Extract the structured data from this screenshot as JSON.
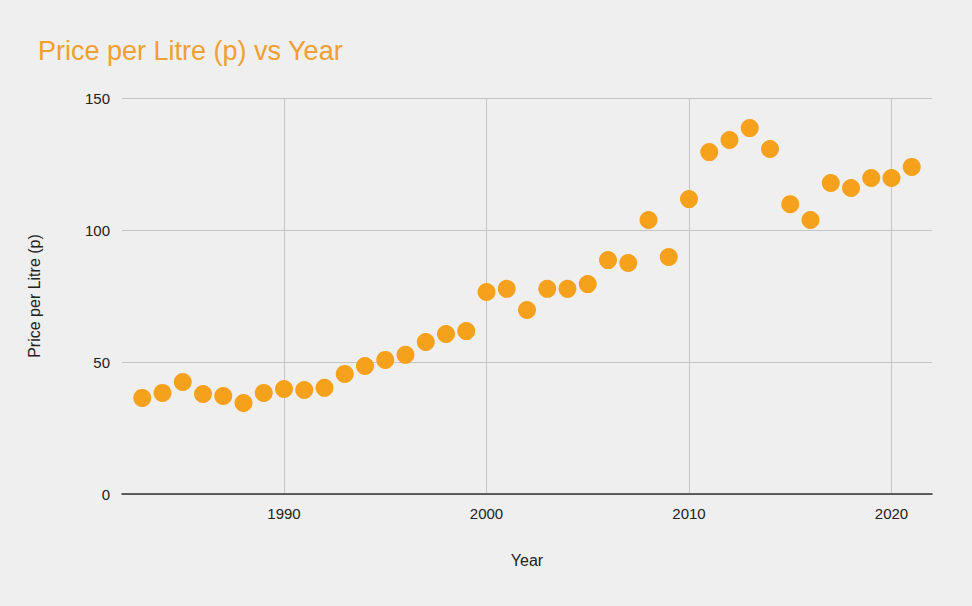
{
  "chart_data": {
    "type": "scatter",
    "title": "Price per Litre (p) vs Year",
    "x_label": "Year",
    "y_label": "Price per Litre (p)",
    "x": [
      1983,
      1984,
      1985,
      1986,
      1987,
      1988,
      1989,
      1990,
      1991,
      1992,
      1993,
      1994,
      1995,
      1996,
      1997,
      1998,
      1999,
      2000,
      2001,
      2002,
      2003,
      2004,
      2005,
      2006,
      2007,
      2008,
      2009,
      2010,
      2011,
      2012,
      2013,
      2014,
      2015,
      2016,
      2017,
      2018,
      2019,
      2020,
      2021
    ],
    "values": [
      36.4,
      38.3,
      42.4,
      37.9,
      37.1,
      34.5,
      38.3,
      39.8,
      39.4,
      40.2,
      45.5,
      48.5,
      50.8,
      52.7,
      57.6,
      60.6,
      61.7,
      76.5,
      77.7,
      69.7,
      77.7,
      77.7,
      79.5,
      88.6,
      87.5,
      103.8,
      89.8,
      111.7,
      129.5,
      134.1,
      138.6,
      130.7,
      109.8,
      103.8,
      117.8,
      115.9,
      119.7,
      119.7,
      123.9
    ],
    "color": "#f5a11c",
    "xlim": [
      1982,
      2022
    ],
    "xticks": [
      1990,
      2000,
      2010,
      2020
    ],
    "ylim": [
      0,
      150
    ],
    "yticks": [
      0,
      50,
      100,
      150
    ],
    "grid": true
  }
}
